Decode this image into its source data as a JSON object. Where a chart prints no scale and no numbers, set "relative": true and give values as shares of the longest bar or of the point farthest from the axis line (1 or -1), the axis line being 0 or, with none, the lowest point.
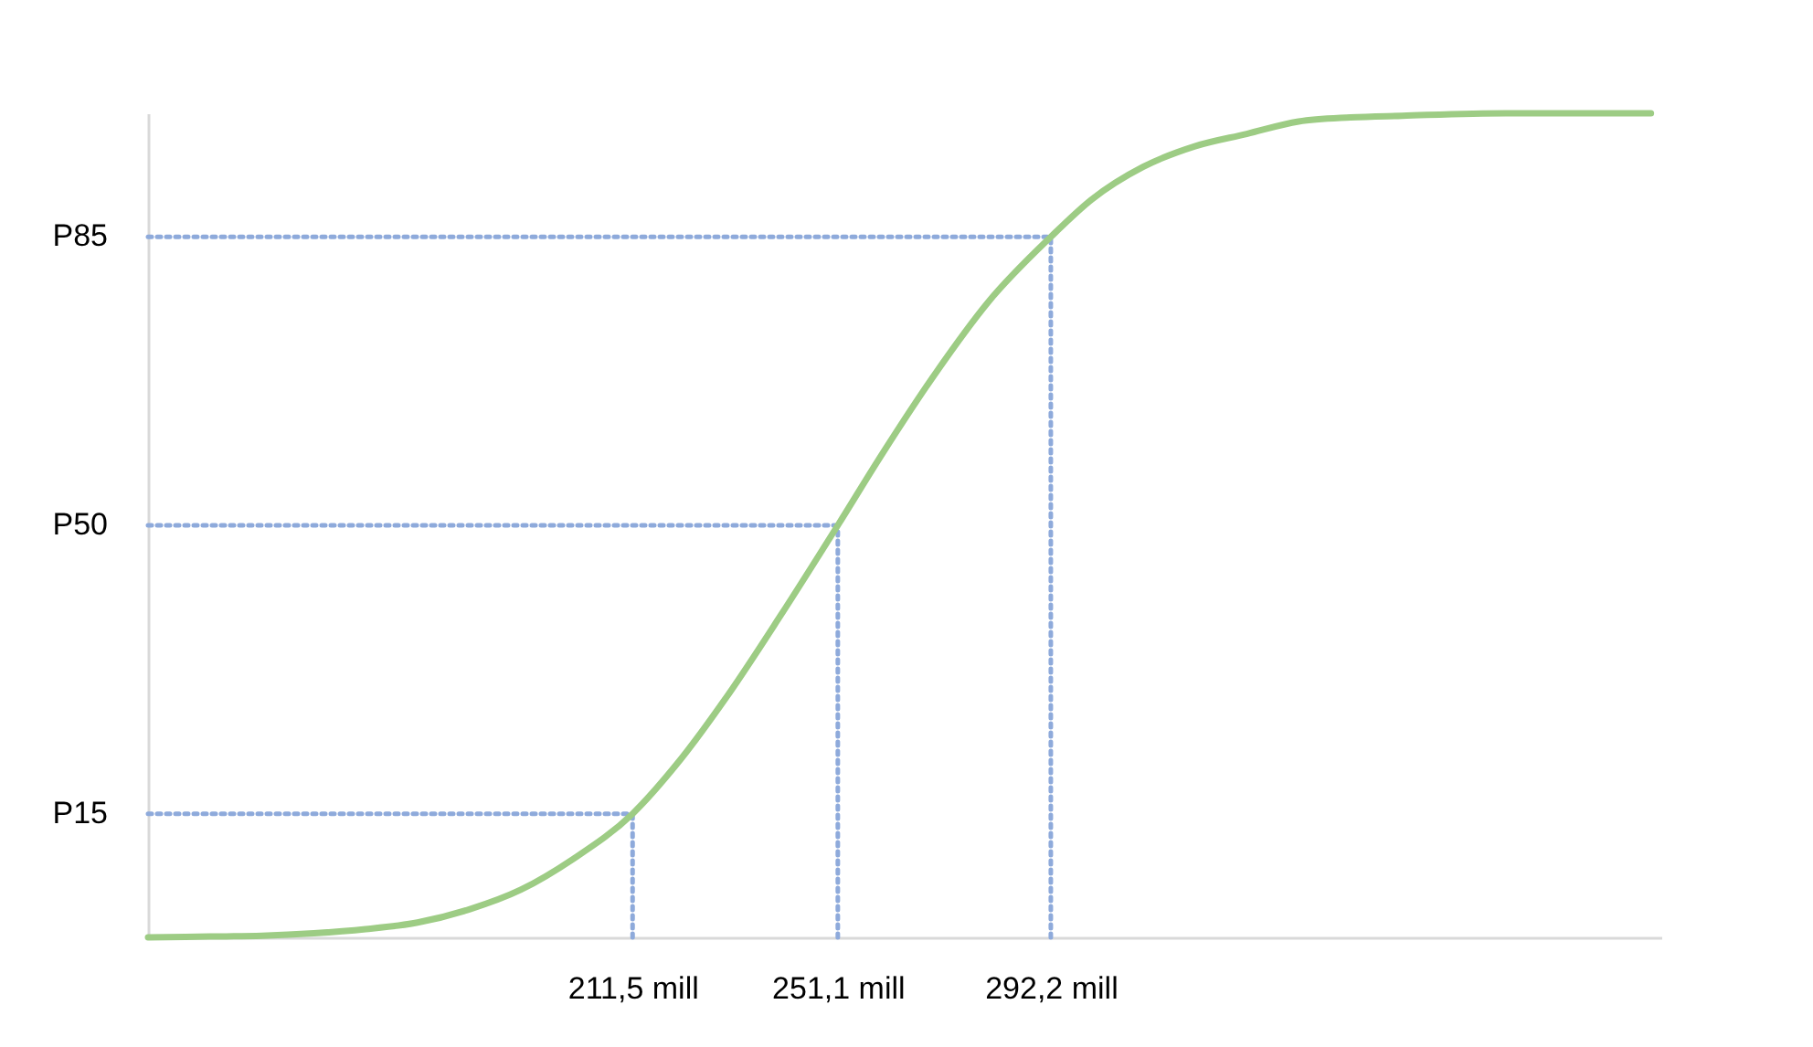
{
  "chart_data": {
    "type": "line",
    "relative": true,
    "x": [
      118,
      130,
      140,
      150,
      160,
      170,
      180,
      190,
      200,
      211.5,
      220,
      230,
      240,
      251.1,
      260,
      270,
      280,
      292.2,
      300,
      310,
      320,
      330,
      340,
      350,
      360,
      380,
      408
    ],
    "series": [
      {
        "color": "#9dcc84",
        "values": [
          0,
          0.001,
          0.002,
          0.005,
          0.01,
          0.018,
          0.034,
          0.058,
          0.095,
          0.15,
          0.21,
          0.295,
          0.39,
          0.5,
          0.59,
          0.685,
          0.77,
          0.85,
          0.895,
          0.935,
          0.96,
          0.975,
          0.99,
          0.995,
          0.997,
          1,
          1
        ]
      }
    ],
    "xlim": [
      118,
      410
    ],
    "xticks": [
      {
        "value": 211.5,
        "label": "211,5 mill"
      },
      {
        "value": 251.1,
        "label": "251,1 mill"
      },
      {
        "value": 292.2,
        "label": "292,2 mill"
      }
    ],
    "ref_lines": [
      {
        "axis": "y",
        "value": 0.15,
        "label": "P15",
        "color": "#8eaadb",
        "line_style": "dotted"
      },
      {
        "axis": "y",
        "value": 0.5,
        "label": "P50",
        "color": "#8eaadb",
        "line_style": "dotted"
      },
      {
        "axis": "y",
        "value": 0.85,
        "label": "P85",
        "color": "#8eaadb",
        "line_style": "dotted"
      },
      {
        "axis": "x",
        "value": 211.5,
        "color": "#8eaadb",
        "line_style": "dotted"
      },
      {
        "axis": "x",
        "value": 251.1,
        "color": "#8eaadb",
        "line_style": "dotted"
      },
      {
        "axis": "x",
        "value": 292.2,
        "color": "#8eaadb",
        "line_style": "dotted"
      }
    ],
    "marker": "none",
    "line_style": "solid"
  }
}
